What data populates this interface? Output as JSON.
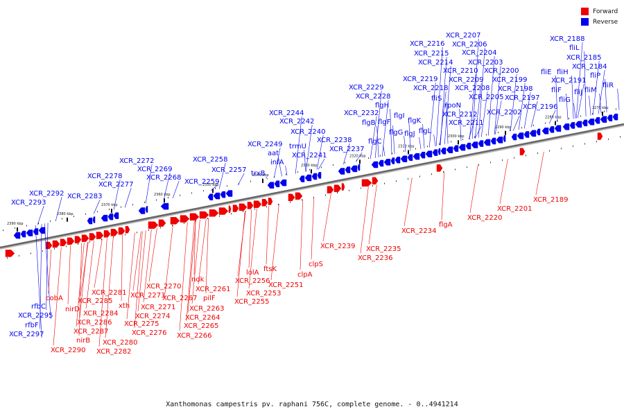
{
  "legend": {
    "forward_label": "Forward",
    "reverse_label": "Reverse",
    "forward_color": "#ee0000",
    "reverse_color": "#0000ee"
  },
  "caption": "Xanthomonas campestris pv. raphani 756C, complete genome. - 0..4941214",
  "ticks": [
    "2390 kbp",
    "2380 kbp",
    "2370 kbp",
    "2360 kbp",
    "2350 kbp",
    "2340 kbp",
    "2330 kbp",
    "2320 kbp",
    "2310 kbp",
    "2300 kbp",
    "2290 kbp",
    "2280 kbp",
    "2270 kbp"
  ],
  "reverse_labels": [
    "XCR_2188",
    "fliL",
    "XCR_2185",
    "XCR_2184",
    "fliE",
    "fliH",
    "fliP",
    "XCR_2191",
    "fliF",
    "fliJ",
    "fliM",
    "fliR",
    "fliG",
    "XCR_2207",
    "XCR_2216",
    "XCR_2206",
    "XCR_2215",
    "XCR_2204",
    "XCR_2214",
    "XCR_2203",
    "XCR_2210",
    "XCR_2200",
    "XCR_2219",
    "XCR_2209",
    "XCR_2199",
    "XCR_2218",
    "XCR_2208",
    "XCR_2198",
    "fliS",
    "XCR_2205",
    "XCR_2197",
    "rpoN",
    "XCR_2202",
    "XCR_2196",
    "XCR_2212",
    "XCR_2211",
    "XCR_2229",
    "XCR_2228",
    "flgH",
    "XCR_2232",
    "flgI",
    "flgB",
    "flgF",
    "flgK",
    "flgG",
    "flgJ",
    "flgL",
    "flgC",
    "XCR_2244",
    "XCR_2242",
    "XCR_2240",
    "XCR_2238",
    "XCR_2249",
    "trmU",
    "XCR_2237",
    "aat",
    "XCR_2241",
    "infA",
    "trxB",
    "XCR_2272",
    "XCR_2258",
    "XCR_2269",
    "XCR_2257",
    "XCR_2278",
    "XCR_2268",
    "XCR_2277",
    "XCR_2259",
    "XCR_2292",
    "XCR_2283",
    "XCR_2293",
    "rfbC",
    "XCR_2295",
    "rfbF",
    "XCR_2297"
  ],
  "forward_labels": [
    "cobA",
    "nirD",
    "XCR_2281",
    "XCR_2285",
    "XCR_2284",
    "XCR_2286",
    "XCR_2287",
    "nirB",
    "XCR_2290",
    "xth",
    "XCR_2273",
    "XCR_2274",
    "XCR_2275",
    "XCR_2276",
    "XCR_2280",
    "XCR_2282",
    "XCR_2270",
    "XCR_2271",
    "XCR_2267",
    "ndk",
    "XCR_2261",
    "pilF",
    "XCR_2263",
    "XCR_2264",
    "XCR_2265",
    "XCR_2266",
    "lolA",
    "XCR_2256",
    "ftsK",
    "XCR_2251",
    "XCR_2253",
    "XCR_2255",
    "clpS",
    "clpA",
    "XCR_2239",
    "XCR_2235",
    "XCR_2236",
    "XCR_2234",
    "flgA",
    "XCR_2220",
    "XCR_2201",
    "XCR_2189"
  ]
}
